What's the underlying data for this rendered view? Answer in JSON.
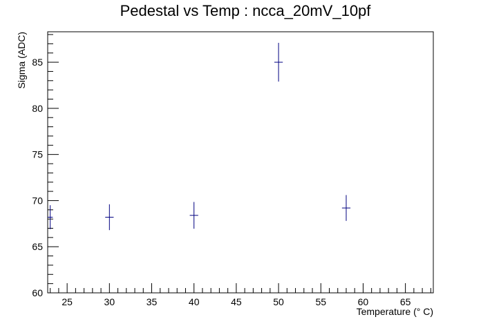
{
  "chart_data": {
    "type": "scatter",
    "title": "Pedestal vs Temp : ncca_20mV_10pf",
    "xlabel": "Temperature (° C)",
    "ylabel": "Sigma (ADC)",
    "xlim": [
      22.7,
      68.3
    ],
    "ylim": [
      60,
      88.3
    ],
    "x_ticks": [
      25,
      30,
      35,
      40,
      45,
      50,
      55,
      60,
      65
    ],
    "y_ticks": [
      60,
      65,
      70,
      75,
      80,
      85
    ],
    "x_minor_step": 1,
    "y_minor_step": 1,
    "grid": false,
    "marker_color": "#000080",
    "points": [
      {
        "x": 23,
        "y": 68.2,
        "xerr": 0.3,
        "yerr": 1.3
      },
      {
        "x": 30,
        "y": 68.2,
        "xerr": 0.5,
        "yerr": 1.4
      },
      {
        "x": 40,
        "y": 68.4,
        "xerr": 0.5,
        "yerr": 1.45
      },
      {
        "x": 50,
        "y": 85.0,
        "xerr": 0.5,
        "yerr": 2.1
      },
      {
        "x": 58,
        "y": 69.2,
        "xerr": 0.5,
        "yerr": 1.4
      }
    ]
  }
}
